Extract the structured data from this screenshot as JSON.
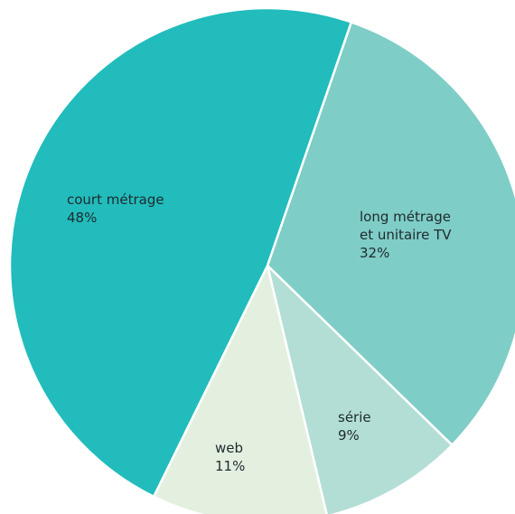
{
  "chart_data": {
    "type": "pie",
    "title": "",
    "slices": [
      {
        "label_lines": [
          "long métrage",
          "et unitaire TV"
        ],
        "value": 32,
        "value_label": "32%",
        "color": "#7fcdc7"
      },
      {
        "label_lines": [
          "série"
        ],
        "value": 9,
        "value_label": "9%",
        "color": "#b2ded5"
      },
      {
        "label_lines": [
          "web"
        ],
        "value": 11,
        "value_label": "11%",
        "color": "#e3f0e0"
      },
      {
        "label_lines": [
          "court métrage"
        ],
        "value": 48,
        "value_label": "48%",
        "color": "#22bcbc"
      }
    ],
    "legend": "none",
    "labels_inside_slices": true
  }
}
